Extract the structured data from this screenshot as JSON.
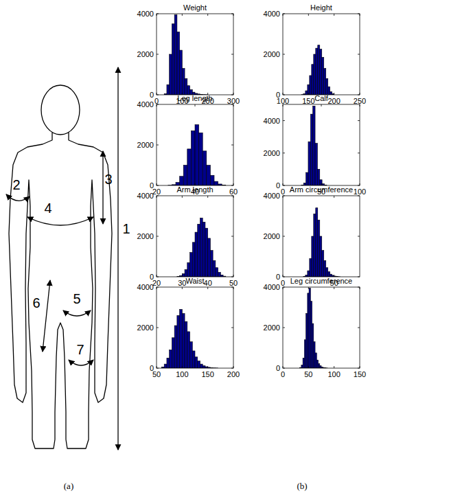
{
  "chart_data": [
    {
      "type": "histogram",
      "title": "Weight",
      "color": "#00008b",
      "bins": [
        30,
        40,
        50,
        60,
        70,
        80,
        90,
        100,
        110,
        120,
        130,
        140,
        150,
        160,
        170,
        180,
        190,
        200
      ],
      "values": [
        50,
        500,
        2000,
        3500,
        3950,
        3100,
        2200,
        1300,
        800,
        450,
        250,
        130,
        70,
        40,
        20,
        10,
        5
      ],
      "xlim": [
        0,
        300
      ],
      "xticks": [
        0,
        100,
        200,
        300
      ],
      "ylim": [
        0,
        4000
      ],
      "yticks": [
        0,
        2000,
        4000
      ]
    },
    {
      "type": "histogram",
      "title": "Height",
      "color": "#00008b",
      "bins": [
        136,
        140,
        144,
        148,
        152,
        156,
        160,
        164,
        168,
        172,
        176,
        180,
        184,
        188,
        192,
        196,
        200
      ],
      "values": [
        10,
        50,
        200,
        500,
        950,
        1500,
        2000,
        2300,
        2450,
        2250,
        1850,
        1300,
        800,
        400,
        150,
        50
      ],
      "xlim": [
        100,
        250
      ],
      "xticks": [
        100,
        150,
        200,
        250
      ],
      "ylim": [
        0,
        4000
      ],
      "yticks": [
        0,
        2000,
        4000
      ]
    },
    {
      "type": "histogram",
      "title": "Leg length",
      "color": "#00008b",
      "bins": [
        26,
        28,
        30,
        32,
        34,
        36,
        38,
        40,
        42,
        44,
        46,
        48,
        50,
        52,
        54,
        56
      ],
      "values": [
        10,
        40,
        150,
        450,
        1000,
        1800,
        2700,
        3000,
        2600,
        1700,
        1000,
        500,
        200,
        70,
        20
      ],
      "xlim": [
        20,
        60
      ],
      "xticks": [
        20,
        40,
        60
      ],
      "ylim": [
        0,
        4000
      ],
      "yticks": [
        0,
        2000,
        4000
      ]
    },
    {
      "type": "histogram",
      "title": "Calf",
      "color": "#00008b",
      "bins": [
        24,
        27,
        30,
        33,
        36,
        39,
        42,
        45,
        48,
        51,
        54,
        57
      ],
      "values": [
        20,
        150,
        800,
        2700,
        4400,
        4900,
        2600,
        1000,
        350,
        100,
        30
      ],
      "xlim": [
        0,
        100
      ],
      "xticks": [
        0,
        50,
        100
      ],
      "ylim": [
        0,
        5000
      ],
      "yticks": [
        0,
        2000,
        4000
      ]
    },
    {
      "type": "histogram",
      "title": "Arm length",
      "color": "#00008b",
      "bins": [
        28,
        29,
        30,
        31,
        32,
        33,
        34,
        35,
        36,
        37,
        38,
        39,
        40,
        41,
        42,
        43,
        44,
        45,
        46,
        47
      ],
      "values": [
        20,
        60,
        150,
        350,
        700,
        1200,
        1700,
        2200,
        2600,
        2900,
        2700,
        2400,
        1900,
        1300,
        800,
        450,
        220,
        90,
        30
      ],
      "xlim": [
        20,
        50
      ],
      "xticks": [
        20,
        30,
        40,
        50
      ],
      "ylim": [
        0,
        4000
      ],
      "yticks": [
        0,
        2000,
        4000
      ]
    },
    {
      "type": "histogram",
      "title": "Arm circumference",
      "color": "#00008b",
      "bins": [
        20,
        22,
        24,
        26,
        28,
        30,
        32,
        34,
        36,
        38,
        40,
        42,
        44,
        46,
        48,
        50,
        52,
        54,
        56
      ],
      "values": [
        20,
        80,
        300,
        900,
        2000,
        3100,
        3400,
        2800,
        2000,
        1300,
        800,
        450,
        250,
        130,
        70,
        35,
        15,
        5
      ],
      "xlim": [
        0,
        75
      ],
      "xticks": [
        0,
        50
      ],
      "ylim": [
        0,
        4000
      ],
      "yticks": [
        0,
        2000,
        4000
      ]
    },
    {
      "type": "histogram",
      "title": "Waist",
      "color": "#00008b",
      "bins": [
        60,
        65,
        70,
        75,
        80,
        85,
        90,
        95,
        100,
        105,
        110,
        115,
        120,
        125,
        130,
        135,
        140,
        145,
        150,
        155,
        160,
        165,
        170
      ],
      "values": [
        60,
        200,
        500,
        900,
        1500,
        2100,
        2600,
        2900,
        2700,
        2300,
        1800,
        1300,
        850,
        550,
        350,
        200,
        120,
        70,
        40,
        20,
        10,
        5
      ],
      "xlim": [
        50,
        200
      ],
      "xticks": [
        50,
        100,
        150,
        200
      ],
      "ylim": [
        0,
        4000
      ],
      "yticks": [
        0,
        2000,
        4000
      ]
    },
    {
      "type": "histogram",
      "title": "Leg circumference",
      "color": "#00008b",
      "bins": [
        33,
        36,
        39,
        42,
        45,
        48,
        51,
        54,
        57,
        60,
        63,
        66,
        69,
        72,
        75,
        78,
        81,
        84,
        87
      ],
      "values": [
        30,
        150,
        500,
        1400,
        2700,
        3700,
        3950,
        3300,
        2200,
        1300,
        750,
        400,
        220,
        120,
        60,
        30,
        15,
        5
      ],
      "xlim": [
        0,
        150
      ],
      "xticks": [
        0,
        50,
        100,
        150
      ],
      "ylim": [
        0,
        4000
      ],
      "yticks": [
        0,
        2000,
        4000
      ]
    }
  ],
  "diagram": {
    "labels": [
      "1",
      "2",
      "3",
      "4",
      "5",
      "6",
      "7"
    ]
  },
  "panel_labels": [
    "(a)",
    "(b)"
  ]
}
